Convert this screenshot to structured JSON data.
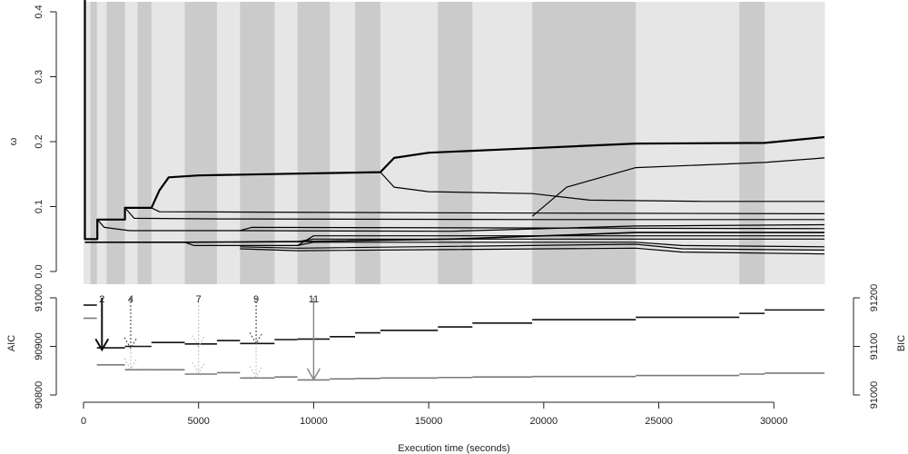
{
  "chart_data": [
    {
      "type": "line",
      "panel": "top",
      "ylabel": "ω",
      "ylim": [
        0,
        0.4
      ],
      "xlim": [
        0,
        32200
      ],
      "yticks": [
        "0.0",
        "0.1",
        "0.2",
        "0.3",
        "0.4"
      ],
      "shaded_bands": [
        [
          0,
          300,
          "light"
        ],
        [
          300,
          580,
          "dark"
        ],
        [
          580,
          1000,
          "light"
        ],
        [
          1000,
          1800,
          "dark"
        ],
        [
          1800,
          2350,
          "light"
        ],
        [
          2350,
          2950,
          "dark"
        ],
        [
          2950,
          4400,
          "light"
        ],
        [
          4400,
          5800,
          "dark"
        ],
        [
          5800,
          6800,
          "light"
        ],
        [
          6800,
          8300,
          "dark"
        ],
        [
          8300,
          9300,
          "light"
        ],
        [
          9300,
          10700,
          "dark"
        ],
        [
          10700,
          11800,
          "light"
        ],
        [
          11800,
          12900,
          "dark"
        ],
        [
          12900,
          15400,
          "light"
        ],
        [
          15400,
          16900,
          "dark"
        ],
        [
          16900,
          19500,
          "light"
        ],
        [
          19500,
          24000,
          "dark"
        ],
        [
          24000,
          28500,
          "light"
        ],
        [
          28500,
          29600,
          "dark"
        ],
        [
          29600,
          32200,
          "light"
        ]
      ],
      "series": [
        {
          "name": "branch-1",
          "width": 2.2,
          "points": [
            [
              60,
              0.42
            ],
            [
              60,
              0.05
            ],
            [
              600,
              0.05
            ],
            [
              600,
              0.08
            ],
            [
              1800,
              0.08
            ],
            [
              1800,
              0.098
            ],
            [
              2950,
              0.098
            ],
            [
              3300,
              0.125
            ],
            [
              3700,
              0.145
            ],
            [
              5000,
              0.148
            ],
            [
              8000,
              0.15
            ],
            [
              12900,
              0.153
            ],
            [
              13500,
              0.175
            ],
            [
              15000,
              0.183
            ],
            [
              19500,
              0.19
            ],
            [
              24000,
              0.197
            ],
            [
              29600,
              0.198
            ],
            [
              32200,
              0.207
            ]
          ]
        },
        {
          "name": "branch-2",
          "width": 1.2,
          "points": [
            [
              12900,
              0.153
            ],
            [
              13500,
              0.13
            ],
            [
              15000,
              0.123
            ],
            [
              19500,
              0.12
            ],
            [
              22000,
              0.11
            ],
            [
              27000,
              0.108
            ],
            [
              32200,
              0.108
            ]
          ]
        },
        {
          "name": "branch-3",
          "width": 1.2,
          "points": [
            [
              19500,
              0.085
            ],
            [
              21000,
              0.13
            ],
            [
              24000,
              0.16
            ],
            [
              29600,
              0.168
            ],
            [
              32200,
              0.175
            ]
          ]
        },
        {
          "name": "branch-4",
          "width": 1.2,
          "points": [
            [
              2950,
              0.098
            ],
            [
              3300,
              0.092
            ],
            [
              10000,
              0.091
            ],
            [
              20000,
              0.09
            ],
            [
              32200,
              0.089
            ]
          ]
        },
        {
          "name": "branch-5",
          "width": 1.2,
          "points": [
            [
              1800,
              0.098
            ],
            [
              2200,
              0.082
            ],
            [
              6000,
              0.081
            ],
            [
              20000,
              0.08
            ],
            [
              32200,
              0.08
            ]
          ]
        },
        {
          "name": "branch-6",
          "width": 1.2,
          "points": [
            [
              600,
              0.08
            ],
            [
              900,
              0.068
            ],
            [
              2000,
              0.063
            ],
            [
              6800,
              0.063
            ],
            [
              16000,
              0.062
            ],
            [
              24000,
              0.07
            ],
            [
              32200,
              0.072
            ]
          ]
        },
        {
          "name": "branch-7",
          "width": 1.2,
          "points": [
            [
              6800,
              0.063
            ],
            [
              7300,
              0.068
            ],
            [
              20000,
              0.067
            ],
            [
              32200,
              0.066
            ]
          ]
        },
        {
          "name": "branch-8",
          "width": 1.6,
          "points": [
            [
              60,
              0.045
            ],
            [
              4400,
              0.045
            ],
            [
              9300,
              0.046
            ],
            [
              16000,
              0.05
            ],
            [
              24000,
              0.06
            ],
            [
              32200,
              0.06
            ]
          ]
        },
        {
          "name": "branch-9",
          "width": 1.2,
          "points": [
            [
              4400,
              0.045
            ],
            [
              4800,
              0.04
            ],
            [
              9300,
              0.04
            ],
            [
              10000,
              0.055
            ],
            [
              24000,
              0.055
            ],
            [
              32200,
              0.055
            ]
          ]
        },
        {
          "name": "branch-10",
          "width": 1.2,
          "points": [
            [
              9300,
              0.046
            ],
            [
              10000,
              0.05
            ],
            [
              24000,
              0.05
            ],
            [
              32200,
              0.05
            ]
          ]
        },
        {
          "name": "branch-11",
          "width": 1.2,
          "points": [
            [
              9300,
              0.04
            ],
            [
              10000,
              0.045
            ],
            [
              24000,
              0.045
            ],
            [
              26000,
              0.04
            ],
            [
              32200,
              0.038
            ]
          ]
        },
        {
          "name": "branch-12",
          "width": 1.2,
          "points": [
            [
              6800,
              0.038
            ],
            [
              9300,
              0.036
            ],
            [
              24000,
              0.042
            ],
            [
              26000,
              0.035
            ],
            [
              32200,
              0.033
            ]
          ]
        },
        {
          "name": "branch-13",
          "width": 1.2,
          "points": [
            [
              6800,
              0.035
            ],
            [
              9300,
              0.032
            ],
            [
              24000,
              0.036
            ],
            [
              26000,
              0.03
            ],
            [
              32200,
              0.027
            ]
          ]
        }
      ]
    },
    {
      "type": "line",
      "panel": "bottom",
      "xlabel": "Execution time (seconds)",
      "xlim": [
        0,
        32200
      ],
      "xticks": [
        "0",
        "5000",
        "10000",
        "15000",
        "20000",
        "25000",
        "30000"
      ],
      "left_axis": {
        "label": "AIC",
        "ylim": [
          90800,
          91000
        ],
        "ticks": [
          "90800",
          "90900",
          "91000"
        ]
      },
      "right_axis": {
        "label": "BIC",
        "ylim": [
          91000,
          91200
        ],
        "ticks": [
          "91000",
          "91100",
          "91200"
        ]
      },
      "series": [
        {
          "name": "AIC",
          "axis": "left",
          "color": "#7a7a7a",
          "steps": [
            [
              0,
              580,
              90958
            ],
            [
              580,
              1800,
              90862
            ],
            [
              1800,
              2950,
              90852
            ],
            [
              2950,
              4400,
              90852
            ],
            [
              4400,
              5800,
              90843
            ],
            [
              5800,
              6800,
              90846
            ],
            [
              6800,
              8300,
              90835
            ],
            [
              8300,
              9300,
              90837
            ],
            [
              9300,
              10700,
              90831
            ],
            [
              10700,
              11800,
              90833
            ],
            [
              11800,
              12900,
              90834
            ],
            [
              12900,
              15400,
              90835
            ],
            [
              15400,
              16900,
              90836
            ],
            [
              16900,
              19500,
              90837
            ],
            [
              19500,
              24000,
              90838
            ],
            [
              24000,
              28500,
              90840
            ],
            [
              28500,
              29600,
              90843
            ],
            [
              29600,
              32200,
              90845
            ]
          ]
        },
        {
          "name": "BIC",
          "axis": "right",
          "color": "#111111",
          "steps": [
            [
              0,
              580,
              91185
            ],
            [
              580,
              1800,
              91097
            ],
            [
              1800,
              2950,
              91100
            ],
            [
              2950,
              4400,
              91108
            ],
            [
              4400,
              5800,
              91105
            ],
            [
              5800,
              6800,
              91112
            ],
            [
              6800,
              8300,
              91106
            ],
            [
              8300,
              9300,
              91114
            ],
            [
              9300,
              10700,
              91115
            ],
            [
              10700,
              11800,
              91120
            ],
            [
              11800,
              12900,
              91128
            ],
            [
              12900,
              15400,
              91133
            ],
            [
              15400,
              16900,
              91140
            ],
            [
              16900,
              19500,
              91148
            ],
            [
              19500,
              24000,
              91155
            ],
            [
              24000,
              28500,
              91160
            ],
            [
              28500,
              29600,
              91168
            ],
            [
              29600,
              32200,
              91175
            ]
          ]
        }
      ],
      "annotations": [
        {
          "label": "2",
          "x": 800,
          "from": 91000,
          "to": 90893,
          "style": "solid",
          "color": "#111111",
          "weight": 2
        },
        {
          "label": "4",
          "x": 2050,
          "from": 91000,
          "to": 90896,
          "style": "dotted",
          "color": "#333333",
          "weight": 1
        },
        {
          "label": "4",
          "x": 2050,
          "from": 90896,
          "to": 90853,
          "style": "dotted",
          "color": "#bbbbbb",
          "weight": 1
        },
        {
          "label": "7",
          "x": 5000,
          "from": 91000,
          "to": 90900,
          "style": "dotted",
          "color": "#bbbbbb",
          "weight": 1
        },
        {
          "label": "7",
          "x": 5000,
          "from": 90900,
          "to": 90845,
          "style": "dotted",
          "color": "#bbbbbb",
          "weight": 1
        },
        {
          "label": "9",
          "x": 7500,
          "from": 91000,
          "to": 90906,
          "style": "dotted",
          "color": "#333333",
          "weight": 1
        },
        {
          "label": "9",
          "x": 7500,
          "from": 90906,
          "to": 90837,
          "style": "dotted",
          "color": "#bbbbbb",
          "weight": 1
        },
        {
          "label": "11",
          "x": 10000,
          "from": 91000,
          "to": 90832,
          "style": "solid",
          "color": "#888888",
          "weight": 1.5
        }
      ]
    }
  ]
}
